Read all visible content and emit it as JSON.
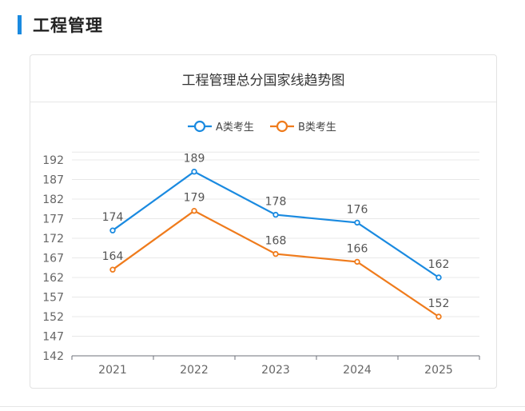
{
  "section": {
    "title": "工程管理"
  },
  "card": {
    "title": "工程管理总分国家线趋势图"
  },
  "chart_data": {
    "type": "line",
    "title": "工程管理总分国家线趋势图",
    "categories": [
      "2021",
      "2022",
      "2023",
      "2024",
      "2025"
    ],
    "yticks": [
      142,
      147,
      152,
      157,
      162,
      167,
      172,
      177,
      182,
      187,
      192
    ],
    "ylim": [
      142,
      194
    ],
    "legend_position": "top-center",
    "series": [
      {
        "name": "A类考生",
        "color": "#1a8ae0",
        "values": [
          174,
          189,
          178,
          176,
          162
        ]
      },
      {
        "name": "B类考生",
        "color": "#ef7b1c",
        "values": [
          164,
          179,
          168,
          166,
          152
        ]
      }
    ]
  }
}
